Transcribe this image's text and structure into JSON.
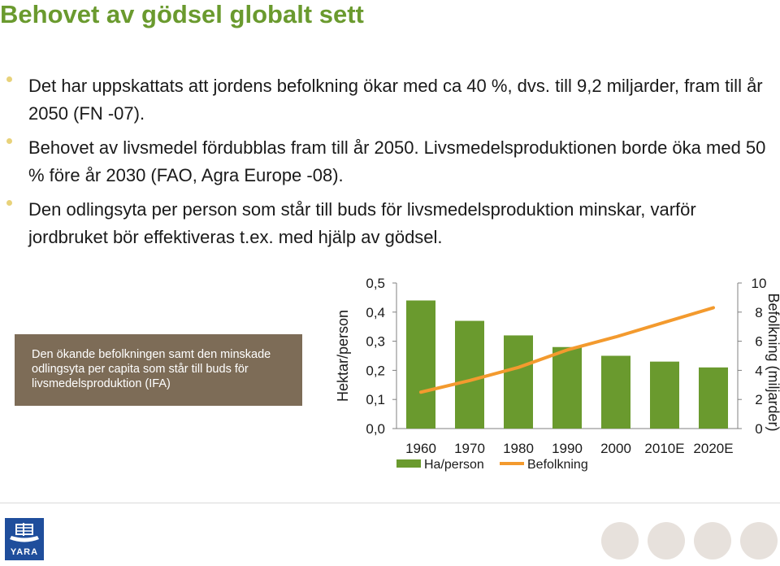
{
  "slide": {
    "title": "Behovet av gödsel globalt sett",
    "bullets": [
      {
        "text": "Det har uppskattats att jordens befolkning ökar med ca 40 %, dvs. till 9,2 miljarder, fram till år 2050 (FN -07)."
      },
      {
        "text": "Behovet av livsmedel fördubblas fram till år 2050. Livsmedelsproduktionen borde öka med 50 % före år 2030 (FAO, Agra Europe -08)."
      },
      {
        "text": "Den odlingsyta per person som står till buds för livsmedelsproduktion minskar, varför jordbruket bör effektiveras t.ex. med hjälp av gödsel."
      }
    ],
    "callout": "Den ökande befolkningen samt den minskade odlingsyta per capita som står till buds för livsmedelsproduktion (IFA)",
    "logo_text": "YARA",
    "colors": {
      "title": "#6a9a2e",
      "bar": "#6a9a2e",
      "line": "#f39a2e",
      "callout_bg": "#7d6c57",
      "bullet": "#e8d27a"
    }
  },
  "chart_data": {
    "type": "bar",
    "categories": [
      "1960",
      "1970",
      "1980",
      "1990",
      "2000",
      "2010E",
      "2020E"
    ],
    "series": [
      {
        "name": "Ha/person",
        "type": "bar",
        "axis": "left",
        "values": [
          0.44,
          0.37,
          0.32,
          0.28,
          0.25,
          0.23,
          0.21
        ]
      },
      {
        "name": "Befolkning",
        "type": "line",
        "axis": "right",
        "values": [
          2.5,
          3.3,
          4.2,
          5.4,
          6.3,
          7.3,
          8.3
        ]
      }
    ],
    "ylabel": "Hektar/person",
    "y2label": "Befolkning (miljarder)",
    "ylim": [
      0,
      0.5
    ],
    "y2lim": [
      0,
      10
    ],
    "yticks": [
      "0,0",
      "0,1",
      "0,2",
      "0,3",
      "0,4",
      "0,5"
    ],
    "y2ticks": [
      "0",
      "2",
      "4",
      "6",
      "8",
      "10"
    ],
    "legend": "bottom"
  }
}
